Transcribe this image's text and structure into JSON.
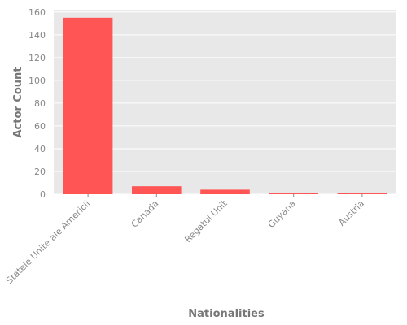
{
  "chart_data": {
    "type": "bar",
    "title": "",
    "xlabel": "Nationalities",
    "ylabel": "Actor Count",
    "categories": [
      "Statele Unite ale Americii",
      "Canada",
      "Regatul Unit",
      "Guyana",
      "Austria"
    ],
    "values": [
      155,
      7,
      4,
      1,
      1
    ],
    "ylim": [
      0,
      162
    ],
    "yticks": [
      0,
      20,
      40,
      60,
      80,
      100,
      120,
      140,
      160
    ],
    "grid": true,
    "legend": "none",
    "colors": {
      "bar": "#ff5555",
      "panel_background": "#e8e8e8",
      "gridline": "#ffffff",
      "tick_text": "#888888",
      "axis_title_text": "#777777"
    }
  }
}
